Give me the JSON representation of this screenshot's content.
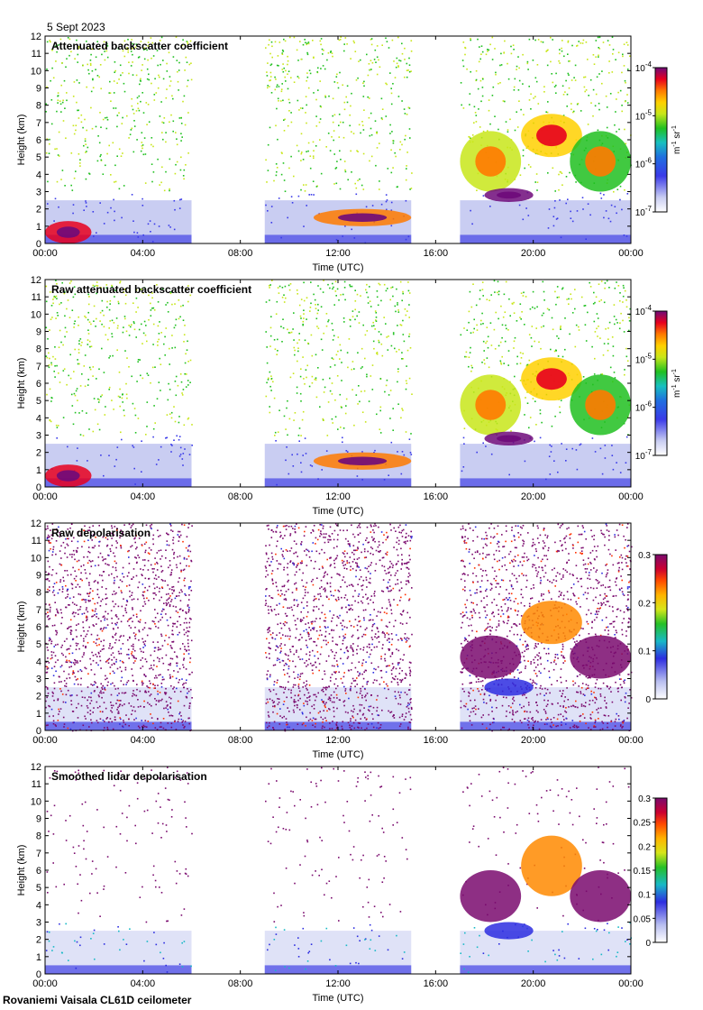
{
  "header": {
    "date": "5 Sept 2023"
  },
  "footer": {
    "site": "Rovaniemi Vaisala CL61D ceilometer"
  },
  "chart_data": [
    {
      "type": "heatmap",
      "title": "Attenuated backscatter coefficient",
      "xlabel": "Time (UTC)",
      "ylabel": "Height (km)",
      "xticks": [
        "00:00",
        "04:00",
        "08:00",
        "12:00",
        "16:00",
        "20:00",
        "00:00"
      ],
      "yticks": [
        "0",
        "1",
        "2",
        "3",
        "4",
        "5",
        "6",
        "7",
        "8",
        "9",
        "10",
        "11",
        "12"
      ],
      "xlim_hours": [
        0,
        24
      ],
      "ylim_km": [
        0,
        12
      ],
      "data_gaps_hours": [
        [
          6,
          9
        ],
        [
          15,
          17
        ]
      ],
      "colorbar": {
        "scale": "log",
        "range": [
          1e-07,
          0.0001
        ],
        "ticks": [
          {
            "base": "10",
            "exp": "-4"
          },
          {
            "base": "10",
            "exp": "-5"
          },
          {
            "base": "10",
            "exp": "-6"
          },
          {
            "base": "10",
            "exp": "-7"
          }
        ],
        "unit": {
          "m": "m",
          "m_exp": "-1",
          "sr": "sr",
          "sr_exp": "-1"
        }
      },
      "features": [
        {
          "t0": 0.0,
          "t1": 1.9,
          "h0": 0.0,
          "h1": 1.3,
          "level": 0.85
        },
        {
          "t0": 11.0,
          "t1": 15.0,
          "h0": 1.0,
          "h1": 2.0,
          "level": 0.8
        },
        {
          "t0": 17.0,
          "t1": 19.5,
          "h0": 3.0,
          "h1": 6.5,
          "level": 0.55
        },
        {
          "t0": 19.5,
          "t1": 22.0,
          "h0": 5.0,
          "h1": 7.5,
          "level": 0.65
        },
        {
          "t0": 21.5,
          "t1": 24.0,
          "h0": 3.0,
          "h1": 6.5,
          "level": 0.5
        },
        {
          "t0": 18.0,
          "t1": 20.0,
          "h0": 2.4,
          "h1": 3.2,
          "level": 0.95
        }
      ]
    },
    {
      "type": "heatmap",
      "title": "Raw attenuated backscatter coefficient",
      "xlabel": "Time (UTC)",
      "ylabel": "Height (km)",
      "xticks": [
        "00:00",
        "04:00",
        "08:00",
        "12:00",
        "16:00",
        "20:00",
        "00:00"
      ],
      "yticks": [
        "0",
        "1",
        "2",
        "3",
        "4",
        "5",
        "6",
        "7",
        "8",
        "9",
        "10",
        "11",
        "12"
      ],
      "xlim_hours": [
        0,
        24
      ],
      "ylim_km": [
        0,
        12
      ],
      "data_gaps_hours": [
        [
          6,
          9
        ],
        [
          15,
          17
        ]
      ],
      "colorbar": {
        "scale": "log",
        "range": [
          1e-07,
          0.0001
        ],
        "ticks": [
          {
            "base": "10",
            "exp": "-4"
          },
          {
            "base": "10",
            "exp": "-5"
          },
          {
            "base": "10",
            "exp": "-6"
          },
          {
            "base": "10",
            "exp": "-7"
          }
        ],
        "unit": {
          "m": "m",
          "m_exp": "-1",
          "sr": "sr",
          "sr_exp": "-1"
        }
      },
      "features": [
        {
          "t0": 0.0,
          "t1": 1.9,
          "h0": 0.0,
          "h1": 1.3,
          "level": 0.85
        },
        {
          "t0": 11.0,
          "t1": 15.0,
          "h0": 1.0,
          "h1": 2.0,
          "level": 0.8
        },
        {
          "t0": 17.0,
          "t1": 19.5,
          "h0": 3.0,
          "h1": 6.5,
          "level": 0.55
        },
        {
          "t0": 19.5,
          "t1": 22.0,
          "h0": 5.0,
          "h1": 7.5,
          "level": 0.65
        },
        {
          "t0": 21.5,
          "t1": 24.0,
          "h0": 3.0,
          "h1": 6.5,
          "level": 0.5
        },
        {
          "t0": 18.0,
          "t1": 20.0,
          "h0": 2.4,
          "h1": 3.2,
          "level": 0.95
        }
      ]
    },
    {
      "type": "heatmap",
      "title": "Raw depolarisation",
      "xlabel": "Time (UTC)",
      "ylabel": "Height (km)",
      "xticks": [
        "00:00",
        "04:00",
        "08:00",
        "12:00",
        "16:00",
        "20:00",
        "00:00"
      ],
      "yticks": [
        "0",
        "1",
        "2",
        "3",
        "4",
        "5",
        "6",
        "7",
        "8",
        "9",
        "10",
        "11",
        "12"
      ],
      "xlim_hours": [
        0,
        24
      ],
      "ylim_km": [
        0,
        12
      ],
      "data_gaps_hours": [
        [
          6,
          9
        ],
        [
          15,
          17
        ]
      ],
      "colorbar": {
        "scale": "linear",
        "range": [
          0,
          0.3
        ],
        "ticks": [
          "0.3",
          "0.2",
          "0.1",
          "0"
        ]
      },
      "features": [
        {
          "t0": 17.0,
          "t1": 19.5,
          "h0": 3.0,
          "h1": 5.5,
          "level": 0.9
        },
        {
          "t0": 19.5,
          "t1": 22.0,
          "h0": 5.0,
          "h1": 7.5,
          "level": 0.6
        },
        {
          "t0": 21.5,
          "t1": 24.0,
          "h0": 3.0,
          "h1": 5.5,
          "level": 0.9
        },
        {
          "t0": 18.0,
          "t1": 20.0,
          "h0": 2.0,
          "h1": 3.0,
          "level": 0.2
        }
      ]
    },
    {
      "type": "heatmap",
      "title": "Smoothed lidar depolarisation",
      "xlabel": "Time (UTC)",
      "ylabel": "Height (km)",
      "xticks": [
        "00:00",
        "04:00",
        "08:00",
        "12:00",
        "16:00",
        "20:00",
        "00:00"
      ],
      "yticks": [
        "0",
        "1",
        "2",
        "3",
        "4",
        "5",
        "6",
        "7",
        "8",
        "9",
        "10",
        "11",
        "12"
      ],
      "xlim_hours": [
        0,
        24
      ],
      "ylim_km": [
        0,
        12
      ],
      "data_gaps_hours": [
        [
          6,
          9
        ],
        [
          15,
          17
        ]
      ],
      "colorbar": {
        "scale": "linear",
        "range": [
          0,
          0.3
        ],
        "ticks": [
          "0.3",
          "0.25",
          "0.2",
          "0.15",
          "0.1",
          "0.05",
          "0"
        ]
      },
      "features": [
        {
          "t0": 17.0,
          "t1": 19.5,
          "h0": 3.0,
          "h1": 6.0,
          "level": 0.95
        },
        {
          "t0": 19.5,
          "t1": 22.0,
          "h0": 4.5,
          "h1": 8.0,
          "level": 0.75
        },
        {
          "t0": 21.5,
          "t1": 24.0,
          "h0": 3.0,
          "h1": 6.0,
          "level": 0.95
        },
        {
          "t0": 18.0,
          "t1": 20.0,
          "h0": 2.0,
          "h1": 3.0,
          "level": 0.25
        }
      ]
    }
  ]
}
